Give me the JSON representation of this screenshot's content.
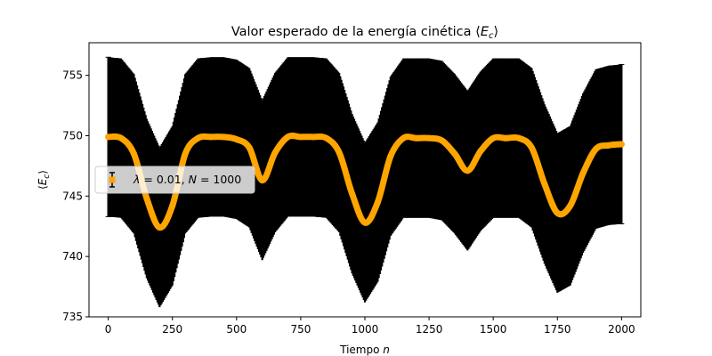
{
  "chart_data": {
    "type": "line",
    "title": "Valor esperado de la energía cinética ⟨E_c⟩",
    "xlabel": "Tiempo n",
    "ylabel": "⟨E_c⟩",
    "xlim": [
      -75,
      2075
    ],
    "ylim": [
      735.0,
      757.7
    ],
    "xticks": [
      0,
      250,
      500,
      750,
      1000,
      1250,
      1500,
      1750,
      2000
    ],
    "yticks": [
      735,
      740,
      745,
      750,
      755
    ],
    "grid": false,
    "legend_position": "center-left",
    "series": [
      {
        "name": "λ = 0.01, N = 1000",
        "color": "#ffa500",
        "errorbar_color": "#000000",
        "error_half_width": 6.6,
        "x": [
          0,
          50,
          100,
          150,
          200,
          250,
          300,
          350,
          400,
          450,
          500,
          550,
          600,
          650,
          700,
          750,
          800,
          850,
          900,
          950,
          1000,
          1050,
          1100,
          1150,
          1200,
          1250,
          1300,
          1350,
          1400,
          1450,
          1500,
          1550,
          1600,
          1650,
          1700,
          1750,
          1800,
          1850,
          1900,
          1950,
          2000
        ],
        "y": [
          749.9,
          749.8,
          748.5,
          744.8,
          742.4,
          744.2,
          748.5,
          749.8,
          749.9,
          749.9,
          749.7,
          749.0,
          746.3,
          748.6,
          749.9,
          749.9,
          749.9,
          749.8,
          748.6,
          745.2,
          742.8,
          744.5,
          748.3,
          749.8,
          749.8,
          749.8,
          749.6,
          748.5,
          747.1,
          748.7,
          749.8,
          749.8,
          749.8,
          749.0,
          746.0,
          743.6,
          744.2,
          746.9,
          748.9,
          749.2,
          749.3
        ]
      }
    ]
  }
}
